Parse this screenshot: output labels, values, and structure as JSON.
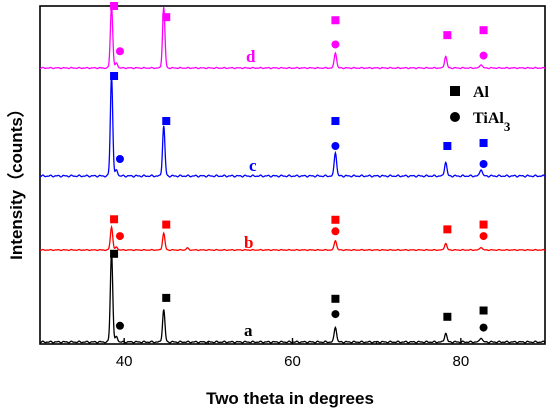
{
  "chart_data": {
    "type": "line",
    "xlabel": "Two theta in degrees",
    "ylabel": "Intensity（counts）",
    "xlim": [
      30,
      90
    ],
    "xticks": [
      40,
      60,
      80
    ],
    "legend": {
      "placement": "right",
      "entries": [
        {
          "marker": "square",
          "label": "Al"
        },
        {
          "marker": "circle",
          "label": "TiAl",
          "subscript": "3"
        }
      ]
    },
    "peak_positions": [
      {
        "phase": "Al",
        "marker": "square",
        "two_theta": 38.5
      },
      {
        "phase": "TiAl3",
        "marker": "circle",
        "two_theta": 39.1
      },
      {
        "phase": "Al",
        "marker": "square",
        "two_theta": 44.7
      },
      {
        "phase": "TiAl3",
        "marker": "circle",
        "two_theta": 65.1
      },
      {
        "phase": "Al",
        "marker": "square",
        "two_theta": 65.1
      },
      {
        "phase": "Al",
        "marker": "square",
        "two_theta": 78.2
      },
      {
        "phase": "TiAl3",
        "marker": "circle",
        "two_theta": 82.4
      },
      {
        "phase": "Al",
        "marker": "square",
        "two_theta": 82.4
      }
    ],
    "series": [
      {
        "name": "a",
        "color": "#000000",
        "peaks": [
          {
            "x": 38.5,
            "height": 1.0
          },
          {
            "x": 39.1,
            "height": 0.06
          },
          {
            "x": 44.7,
            "height": 0.36
          },
          {
            "x": 65.1,
            "height": 0.17
          },
          {
            "x": 78.2,
            "height": 0.1
          },
          {
            "x": 82.4,
            "height": 0.05
          }
        ],
        "markers": [
          {
            "type": "square",
            "x": 38.8,
            "y": 0.98
          },
          {
            "type": "circle",
            "x": 39.5,
            "y": 0.18
          },
          {
            "type": "square",
            "x": 45.0,
            "y": 0.49
          },
          {
            "type": "square",
            "x": 65.1,
            "y": 0.48
          },
          {
            "type": "circle",
            "x": 65.1,
            "y": 0.31
          },
          {
            "type": "square",
            "x": 78.4,
            "y": 0.28
          },
          {
            "type": "square",
            "x": 82.7,
            "y": 0.35
          },
          {
            "type": "circle",
            "x": 82.7,
            "y": 0.16
          }
        ]
      },
      {
        "name": "b",
        "color": "#ff0000",
        "peaks": [
          {
            "x": 38.5,
            "height": 0.48
          },
          {
            "x": 39.1,
            "height": 0.06
          },
          {
            "x": 44.7,
            "height": 0.35
          },
          {
            "x": 47.5,
            "height": 0.04
          },
          {
            "x": 65.1,
            "height": 0.2
          },
          {
            "x": 78.2,
            "height": 0.14
          },
          {
            "x": 82.4,
            "height": 0.06
          }
        ],
        "markers": [
          {
            "type": "square",
            "x": 38.8,
            "y": 0.64
          },
          {
            "type": "circle",
            "x": 39.5,
            "y": 0.29
          },
          {
            "type": "square",
            "x": 45.0,
            "y": 0.53
          },
          {
            "type": "square",
            "x": 65.1,
            "y": 0.63
          },
          {
            "type": "circle",
            "x": 65.1,
            "y": 0.39
          },
          {
            "type": "square",
            "x": 78.4,
            "y": 0.43
          },
          {
            "type": "square",
            "x": 82.7,
            "y": 0.53
          },
          {
            "type": "circle",
            "x": 82.7,
            "y": 0.29
          }
        ]
      },
      {
        "name": "c",
        "color": "#0000ff",
        "peaks": [
          {
            "x": 38.5,
            "height": 1.0
          },
          {
            "x": 39.1,
            "height": 0.06
          },
          {
            "x": 44.7,
            "height": 0.5
          },
          {
            "x": 65.1,
            "height": 0.24
          },
          {
            "x": 78.2,
            "height": 0.14
          },
          {
            "x": 82.4,
            "height": 0.07
          }
        ],
        "markers": [
          {
            "type": "square",
            "x": 38.8,
            "y": 1.0
          },
          {
            "type": "circle",
            "x": 39.5,
            "y": 0.17
          },
          {
            "type": "square",
            "x": 45.0,
            "y": 0.55
          },
          {
            "type": "square",
            "x": 65.1,
            "y": 0.55
          },
          {
            "type": "circle",
            "x": 65.1,
            "y": 0.3
          },
          {
            "type": "square",
            "x": 78.4,
            "y": 0.3
          },
          {
            "type": "square",
            "x": 82.7,
            "y": 0.33
          },
          {
            "type": "circle",
            "x": 82.7,
            "y": 0.12
          }
        ]
      },
      {
        "name": "d",
        "color": "#ff00ff",
        "peaks": [
          {
            "x": 38.5,
            "height": 1.0
          },
          {
            "x": 39.1,
            "height": 0.08
          },
          {
            "x": 44.7,
            "height": 0.98
          },
          {
            "x": 65.1,
            "height": 0.25
          },
          {
            "x": 78.2,
            "height": 0.19
          },
          {
            "x": 82.4,
            "height": 0.06
          }
        ],
        "markers": [
          {
            "type": "square",
            "x": 38.8,
            "y": 1.0
          },
          {
            "type": "circle",
            "x": 39.5,
            "y": 0.27
          },
          {
            "type": "square",
            "x": 45.0,
            "y": 0.82
          },
          {
            "type": "square",
            "x": 65.1,
            "y": 0.77
          },
          {
            "type": "circle",
            "x": 65.1,
            "y": 0.38
          },
          {
            "type": "square",
            "x": 78.4,
            "y": 0.53
          },
          {
            "type": "square",
            "x": 82.7,
            "y": 0.61
          },
          {
            "type": "circle",
            "x": 82.7,
            "y": 0.2
          }
        ]
      }
    ]
  }
}
